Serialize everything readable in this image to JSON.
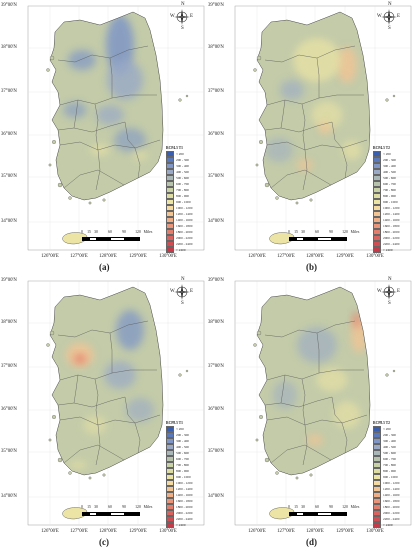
{
  "axes": {
    "y_labels": [
      "39°00'N",
      "38°00'N",
      "37°00'N",
      "36°00'N",
      "35°00'N",
      "34°00'N"
    ],
    "x_labels": [
      "126°00'E",
      "127°00'E",
      "128°00'E",
      "129°00'E",
      "130°00'E"
    ]
  },
  "compass": {
    "n": "N",
    "e": "E",
    "s": "S",
    "w": "W"
  },
  "scale_bar": {
    "labels": [
      "0",
      "15",
      "30",
      "60",
      "90",
      "120"
    ],
    "unit": "Miles"
  },
  "legend": {
    "items": [
      {
        "label": "< 200",
        "color": "#3a5fb0"
      },
      {
        "label": "200 - 300",
        "color": "#5a79bd"
      },
      {
        "label": "300 - 400",
        "color": "#7f96c6"
      },
      {
        "label": "400 - 500",
        "color": "#99a9c6"
      },
      {
        "label": "500 - 600",
        "color": "#a9b7b8"
      },
      {
        "label": "600 - 700",
        "color": "#b7c3ac"
      },
      {
        "label": "700 - 800",
        "color": "#c9d1a6"
      },
      {
        "label": "800 - 900",
        "color": "#dcdca3"
      },
      {
        "label": "900 - 1000",
        "color": "#ece4a4"
      },
      {
        "label": "1000 - 1200",
        "color": "#f4d9a0"
      },
      {
        "label": "1200 - 1400",
        "color": "#f2c494"
      },
      {
        "label": "1400 - 1600",
        "color": "#efae86"
      },
      {
        "label": "1600 - 1800",
        "color": "#ea9579"
      },
      {
        "label": "1800 - 2000",
        "color": "#e37d6c"
      },
      {
        "label": "2000 - 2200",
        "color": "#d9645f"
      },
      {
        "label": "2200 - 2400",
        "color": "#cf4d53"
      },
      {
        "label": "> 2400",
        "color": "#c53a48"
      }
    ]
  },
  "panels": [
    {
      "label": "(a)",
      "legend_title": "RCP4.5 T1"
    },
    {
      "label": "(b)",
      "legend_title": "RCP4.5 T2"
    },
    {
      "label": "(c)",
      "legend_title": "RCP8.5 T1"
    },
    {
      "label": "(d)",
      "legend_title": "RCP8.5 T2"
    }
  ],
  "colors": {
    "base": "#c3cba9",
    "blue": "#7f96c6",
    "lightblue": "#99a9c6",
    "yellow": "#ece4a4",
    "orange": "#f2c494",
    "red": "#e37d6c",
    "border": "#555555"
  }
}
